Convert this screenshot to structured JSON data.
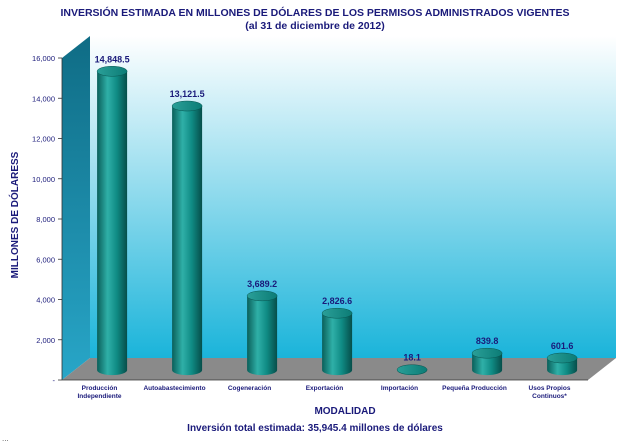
{
  "title": "INVERSIÓN ESTIMADA EN MILLONES DE DÓLARES DE LOS PERMISOS ADMINISTRADOS VIGENTES",
  "subtitle": "(al 31 de diciembre de 2012)",
  "footnote": "Inversión total estimada: 35,945.4 millones de dólares",
  "bottom_cut_text": "...",
  "colors": {
    "bar": "#0e8c86",
    "bar_dark": "#0a5f5a",
    "bar_light": "#3fb8b0",
    "wall_top": "#ffffff",
    "wall_bottom": "#1ab4da",
    "side_wall": "#1a7e98",
    "floor": "#8a8a8a",
    "text": "#1a1a7a"
  },
  "chart_data": {
    "type": "bar",
    "title": "INVERSIÓN ESTIMADA EN MILLONES DE DÓLARES DE LOS PERMISOS ADMINISTRADOS VIGENTES",
    "subtitle": "(al 31 de diciembre de 2012)",
    "xlabel": "MODALIDAD",
    "ylabel": "MILLONES DE DÓLARESS",
    "ylim": [
      0,
      16000
    ],
    "yticks": [
      0,
      2000,
      4000,
      6000,
      8000,
      10000,
      12000,
      14000,
      16000
    ],
    "ytick_labels": [
      "-",
      "2,000",
      "4,000",
      "6,000",
      "8,000",
      "10,000",
      "12,000",
      "14,000",
      "16,000"
    ],
    "grid": false,
    "legend": "none",
    "categories": [
      [
        "Producción",
        "Independiente"
      ],
      [
        "Autoabastecimiento"
      ],
      [
        "Cogeneración"
      ],
      [
        "Exportación"
      ],
      [
        "Importación"
      ],
      [
        "Pequeña Producción"
      ],
      [
        "Usos Propios",
        "Continuos*"
      ]
    ],
    "values": [
      14848.5,
      13121.5,
      3689.2,
      2826.6,
      18.1,
      839.8,
      601.6
    ],
    "value_labels": [
      "14,848.5",
      "13,121.5",
      "3,689.2",
      "2,826.6",
      "18.1",
      "839.8",
      "601.6"
    ]
  }
}
